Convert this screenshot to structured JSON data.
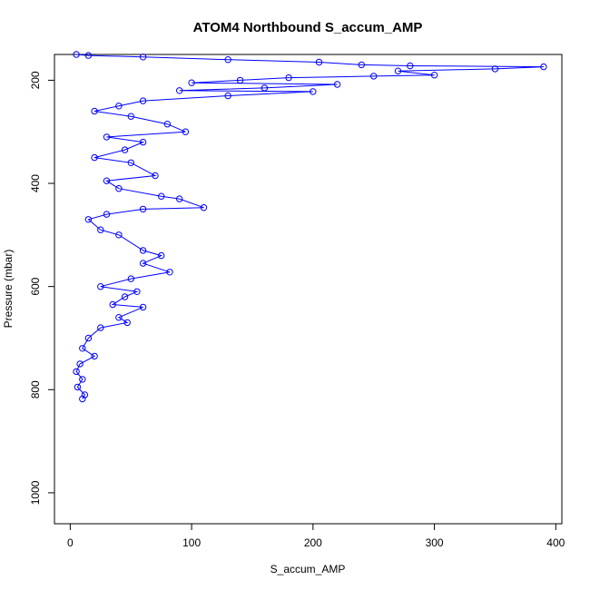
{
  "chart_data": {
    "type": "scatter",
    "title": "ATOM4 Northbound S_accum_AMP",
    "xlabel": "S_accum_AMP",
    "ylabel": "Pressure (mbar)",
    "xlim": [
      -13,
      405
    ],
    "ylim": [
      1060,
      150
    ],
    "y_reversed": true,
    "x_ticks": [
      0,
      100,
      200,
      300,
      400
    ],
    "y_ticks": [
      200,
      400,
      600,
      800,
      1000
    ],
    "x_tick_labels": [
      "0",
      "100",
      "200",
      "300",
      "400"
    ],
    "y_tick_labels": [
      "200",
      "400",
      "600",
      "800",
      "1000"
    ],
    "series": [
      {
        "color": "#0000ff",
        "marker": "open-circle",
        "connected": true,
        "points": [
          [
            5,
            150
          ],
          [
            15,
            152
          ],
          [
            60,
            155
          ],
          [
            130,
            160
          ],
          [
            205,
            165
          ],
          [
            240,
            170
          ],
          [
            280,
            172
          ],
          [
            390,
            174
          ],
          [
            350,
            178
          ],
          [
            270,
            182
          ],
          [
            300,
            190
          ],
          [
            250,
            192
          ],
          [
            180,
            195
          ],
          [
            140,
            200
          ],
          [
            100,
            205
          ],
          [
            220,
            208
          ],
          [
            160,
            215
          ],
          [
            90,
            220
          ],
          [
            200,
            222
          ],
          [
            130,
            230
          ],
          [
            60,
            240
          ],
          [
            40,
            250
          ],
          [
            20,
            260
          ],
          [
            50,
            270
          ],
          [
            80,
            285
          ],
          [
            95,
            300
          ],
          [
            30,
            310
          ],
          [
            60,
            320
          ],
          [
            45,
            335
          ],
          [
            20,
            350
          ],
          [
            50,
            360
          ],
          [
            70,
            385
          ],
          [
            30,
            395
          ],
          [
            40,
            410
          ],
          [
            75,
            425
          ],
          [
            90,
            430
          ],
          [
            110,
            447
          ],
          [
            60,
            450
          ],
          [
            30,
            460
          ],
          [
            15,
            470
          ],
          [
            25,
            490
          ],
          [
            40,
            500
          ],
          [
            60,
            530
          ],
          [
            75,
            540
          ],
          [
            60,
            555
          ],
          [
            82,
            572
          ],
          [
            50,
            585
          ],
          [
            25,
            600
          ],
          [
            55,
            610
          ],
          [
            45,
            620
          ],
          [
            35,
            635
          ],
          [
            60,
            640
          ],
          [
            40,
            660
          ],
          [
            47,
            670
          ],
          [
            25,
            680
          ],
          [
            15,
            700
          ],
          [
            10,
            720
          ],
          [
            20,
            735
          ],
          [
            8,
            750
          ],
          [
            5,
            765
          ],
          [
            10,
            780
          ],
          [
            6,
            795
          ],
          [
            12,
            810
          ],
          [
            10,
            818
          ]
        ]
      }
    ]
  }
}
